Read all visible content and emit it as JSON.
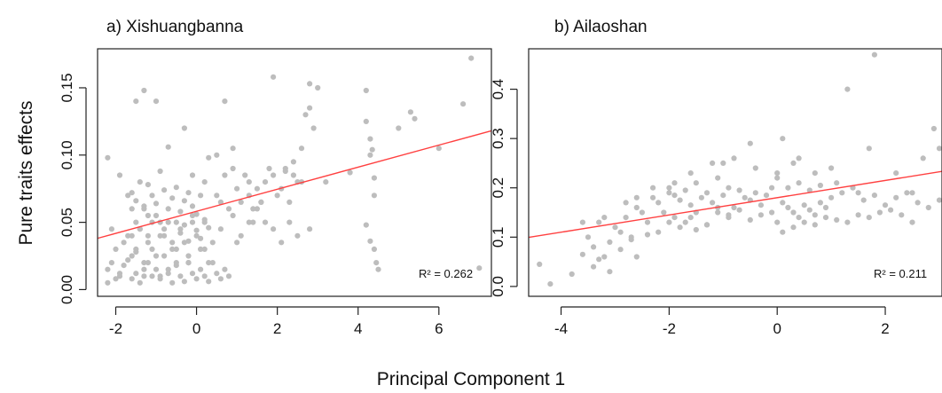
{
  "figure": {
    "xlabel": "Principal Component 1",
    "ylabel": "Pure traits effects"
  },
  "chart_data": [
    {
      "type": "scatter",
      "title": "a)  Xishuangbanna",
      "xlabel": "Principal Component 1",
      "ylabel": "Pure traits effects",
      "xlim": [
        -2.45,
        7.3
      ],
      "ylim": [
        -0.005,
        0.179
      ],
      "xticks": [
        -2,
        0,
        2,
        4,
        6
      ],
      "xtick_labels": [
        "-2",
        "0",
        "2",
        "4",
        "6"
      ],
      "yticks": [
        0.0,
        0.05,
        0.1,
        0.15
      ],
      "ytick_labels": [
        "0.00",
        "0.05",
        "0.10",
        "0.15"
      ],
      "annotation": "R² = 0.262",
      "fit_line": {
        "intercept": 0.0582,
        "slope": 0.0082,
        "color": "#ff4040"
      },
      "point_color": "#bdbdbd",
      "x": [
        -2.2,
        -2.1,
        -2.0,
        -2.1,
        -1.9,
        -1.8,
        -1.7,
        -1.6,
        -1.5,
        -1.6,
        -1.4,
        -1.3,
        -1.3,
        -1.2,
        -1.1,
        -1.0,
        -0.9,
        -0.8,
        -0.7,
        -0.6,
        -0.5,
        -0.4,
        -0.3,
        -0.2,
        -0.1,
        0.0,
        0.1,
        0.2,
        0.3,
        0.4,
        -2.2,
        -2.0,
        -1.9,
        -1.8,
        -1.7,
        -1.6,
        -1.5,
        -1.4,
        -1.3,
        -1.2,
        -1.1,
        -1.0,
        -0.9,
        -0.8,
        -0.7,
        -0.6,
        -0.5,
        -0.4,
        -0.3,
        -0.2,
        -0.1,
        0.0,
        0.1,
        0.2,
        0.3,
        0.4,
        0.5,
        0.6,
        0.7,
        0.8,
        -1.7,
        -1.6,
        -1.5,
        -1.4,
        -1.3,
        -1.2,
        -1.1,
        -1.0,
        -0.9,
        -0.8,
        -0.7,
        -0.6,
        -0.5,
        -0.4,
        -0.3,
        -0.2,
        -0.1,
        0.0,
        0.1,
        0.2,
        -1.6,
        -1.5,
        -1.4,
        -1.3,
        -1.2,
        -1.1,
        -1.0,
        -0.9,
        -0.8,
        -0.7,
        -0.6,
        -0.5,
        -0.4,
        -0.3,
        -0.2,
        -0.1,
        0.0,
        0.1,
        0.2,
        0.3,
        0.5,
        0.6,
        0.7,
        0.8,
        0.9,
        1.0,
        1.1,
        1.2,
        1.3,
        1.4,
        1.5,
        1.6,
        1.7,
        1.8,
        1.9,
        2.0,
        2.1,
        2.2,
        2.3,
        2.4,
        2.5,
        2.6,
        2.7,
        2.8,
        2.9,
        3.0,
        0.9,
        1.1,
        1.3,
        1.5,
        1.7,
        1.9,
        2.1,
        2.3,
        2.5,
        2.8,
        -1.5,
        -1.3,
        -1.0,
        -0.7,
        -0.3,
        -0.1,
        0.3,
        0.5,
        0.7,
        0.9,
        1.3,
        1.6,
        1.9,
        2.2,
        2.4,
        2.6,
        2.8,
        3.2,
        -2.2,
        -1.9,
        -1.5,
        -1.2,
        -0.9,
        -0.5,
        -0.2,
        0.2,
        0.6,
        1.0,
        1.4,
        3.8,
        4.2,
        4.2,
        4.3,
        4.3,
        4.35,
        4.4,
        4.4,
        4.45,
        4.5,
        4.2,
        4.3,
        4.4,
        5.0,
        5.3,
        5.4,
        6.0,
        6.6,
        6.8,
        7.0
      ],
      "y": [
        0.015,
        0.02,
        0.03,
        0.045,
        0.01,
        0.035,
        0.04,
        0.025,
        0.03,
        0.06,
        0.045,
        0.02,
        0.01,
        0.055,
        0.03,
        0.025,
        0.05,
        0.04,
        0.015,
        0.03,
        0.02,
        0.045,
        0.035,
        0.02,
        0.055,
        0.04,
        0.03,
        0.05,
        0.02,
        0.035,
        0.005,
        0.008,
        0.012,
        0.018,
        0.022,
        0.008,
        0.012,
        0.005,
        0.015,
        0.02,
        0.01,
        0.015,
        0.008,
        0.025,
        0.012,
        0.005,
        0.018,
        0.01,
        0.006,
        0.02,
        0.012,
        0.008,
        0.015,
        0.01,
        0.006,
        0.02,
        0.012,
        0.008,
        0.015,
        0.01,
        0.07,
        0.072,
        0.066,
        0.08,
        0.062,
        0.078,
        0.07,
        0.064,
        0.088,
        0.074,
        0.06,
        0.068,
        0.076,
        0.058,
        0.066,
        0.072,
        0.062,
        0.056,
        0.07,
        0.08,
        0.04,
        0.05,
        0.045,
        0.06,
        0.035,
        0.05,
        0.055,
        0.04,
        0.045,
        0.05,
        0.035,
        0.05,
        0.042,
        0.048,
        0.036,
        0.05,
        0.044,
        0.038,
        0.052,
        0.046,
        0.07,
        0.065,
        0.085,
        0.06,
        0.09,
        0.075,
        0.065,
        0.085,
        0.07,
        0.06,
        0.075,
        0.065,
        0.08,
        0.09,
        0.085,
        0.07,
        0.075,
        0.09,
        0.065,
        0.085,
        0.08,
        0.08,
        0.13,
        0.135,
        0.12,
        0.15,
        0.055,
        0.04,
        0.05,
        0.06,
        0.05,
        0.045,
        0.035,
        0.05,
        0.04,
        0.045,
        0.14,
        0.148,
        0.14,
        0.106,
        0.12,
        0.085,
        0.098,
        0.1,
        0.14,
        0.105,
        0.08,
        0.065,
        0.158,
        0.088,
        0.095,
        0.105,
        0.153,
        0.08,
        0.098,
        0.085,
        0.028,
        0.04,
        0.01,
        0.03,
        0.025,
        0.03,
        0.045,
        0.035,
        0.05,
        0.087,
        0.148,
        0.125,
        0.112,
        0.1,
        0.104,
        0.083,
        0.07,
        0.02,
        0.015,
        0.048,
        0.036,
        0.03,
        0.12,
        0.132,
        0.127,
        0.105,
        0.138,
        0.172,
        0.016
      ]
    },
    {
      "type": "scatter",
      "title": "b)  Ailaoshan",
      "xlabel": "Principal Component 1",
      "ylabel": "Pure traits effects",
      "xlim": [
        -4.6,
        3.05
      ],
      "ylim": [
        -0.02,
        0.482
      ],
      "xticks": [
        -4,
        -2,
        0,
        2
      ],
      "xtick_labels": [
        "-4",
        "-2",
        "0",
        "2"
      ],
      "yticks": [
        0.0,
        0.1,
        0.2,
        0.3,
        0.4
      ],
      "ytick_labels": [
        "0.0",
        "0.1",
        "0.2",
        "0.3",
        "0.4"
      ],
      "annotation": "R² = 0.211",
      "fit_line": {
        "intercept": 0.18,
        "slope": 0.0175,
        "color": "#ff4040"
      },
      "point_color": "#bdbdbd",
      "x": [
        -4.4,
        -4.2,
        -3.8,
        -3.6,
        -3.5,
        -3.4,
        -3.3,
        -3.2,
        -3.1,
        -3.0,
        -2.9,
        -2.8,
        -2.7,
        -2.6,
        -2.5,
        -2.4,
        -2.3,
        -2.2,
        -2.1,
        -2.0,
        -3.4,
        -3.3,
        -3.1,
        -2.9,
        -2.7,
        -2.6,
        -2.4,
        -2.2,
        -2.0,
        -1.8,
        -1.6,
        -1.5,
        -1.3,
        -1.1,
        -0.9,
        -2.0,
        -1.9,
        -1.8,
        -1.7,
        -1.6,
        -1.5,
        -1.4,
        -1.3,
        -1.2,
        -1.1,
        -1.0,
        -0.9,
        -0.8,
        -0.7,
        -0.6,
        -0.5,
        -0.4,
        -0.3,
        -0.2,
        -0.1,
        -1.9,
        -1.7,
        -1.5,
        -1.3,
        -1.1,
        -0.9,
        -0.7,
        -0.5,
        -0.3,
        -0.1,
        0.0,
        0.1,
        0.2,
        0.3,
        0.4,
        0.5,
        0.6,
        0.7,
        0.8,
        0.9,
        0.0,
        0.2,
        0.4,
        0.6,
        0.8,
        1.0,
        1.2,
        1.4,
        1.6,
        1.8,
        2.0,
        2.2,
        2.4,
        2.6,
        2.8,
        3.0,
        0.1,
        0.3,
        0.5,
        0.7,
        0.9,
        1.1,
        1.3,
        1.5,
        1.7,
        1.9,
        2.1,
        2.3,
        2.5,
        -1.0,
        -0.5,
        0.1,
        0.4,
        1.0,
        1.3,
        1.7,
        1.8,
        2.2,
        2.5,
        2.7,
        2.9,
        3.0,
        -3.6,
        -3.2,
        -2.8,
        -2.6,
        -2.3,
        -1.9,
        -1.6,
        -1.2,
        -0.8,
        -0.4,
        0.0,
        0.3,
        0.7,
        1.1,
        1.5
      ],
      "y": [
        0.045,
        0.005,
        0.025,
        0.065,
        0.1,
        0.08,
        0.13,
        0.06,
        0.09,
        0.12,
        0.11,
        0.14,
        0.1,
        0.16,
        0.15,
        0.13,
        0.18,
        0.17,
        0.15,
        0.19,
        0.04,
        0.055,
        0.03,
        0.075,
        0.095,
        0.06,
        0.105,
        0.11,
        0.13,
        0.12,
        0.14,
        0.115,
        0.125,
        0.15,
        0.145,
        0.2,
        0.185,
        0.175,
        0.195,
        0.165,
        0.21,
        0.18,
        0.19,
        0.17,
        0.22,
        0.185,
        0.2,
        0.16,
        0.195,
        0.18,
        0.175,
        0.19,
        0.165,
        0.185,
        0.2,
        0.14,
        0.13,
        0.15,
        0.125,
        0.16,
        0.14,
        0.155,
        0.135,
        0.145,
        0.15,
        0.13,
        0.17,
        0.16,
        0.15,
        0.14,
        0.165,
        0.155,
        0.145,
        0.17,
        0.16,
        0.22,
        0.2,
        0.21,
        0.195,
        0.205,
        0.18,
        0.19,
        0.2,
        0.175,
        0.185,
        0.165,
        0.18,
        0.19,
        0.17,
        0.16,
        0.175,
        0.11,
        0.12,
        0.13,
        0.125,
        0.14,
        0.135,
        0.13,
        0.145,
        0.14,
        0.15,
        0.155,
        0.145,
        0.13,
        0.25,
        0.29,
        0.3,
        0.26,
        0.24,
        0.4,
        0.28,
        0.47,
        0.23,
        0.19,
        0.26,
        0.32,
        0.28,
        0.13,
        0.14,
        0.17,
        0.18,
        0.2,
        0.21,
        0.23,
        0.25,
        0.26,
        0.24,
        0.23,
        0.25,
        0.23,
        0.21,
        0.19
      ]
    }
  ]
}
